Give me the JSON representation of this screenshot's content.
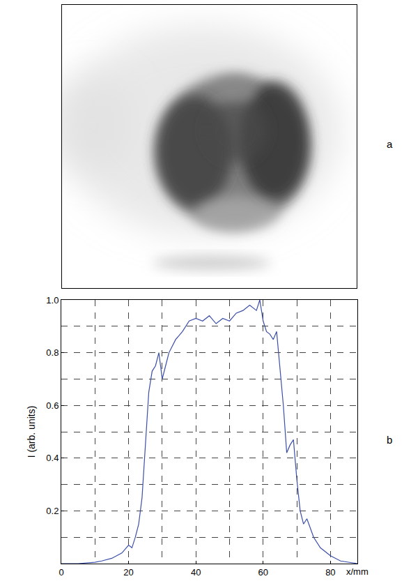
{
  "image_panel": {
    "panel_label": "a"
  },
  "chart_data": {
    "type": "line",
    "panel_label": "b",
    "x_label": "x/mm",
    "y_label": "I (arb. units)",
    "x": [
      0,
      5,
      10,
      12,
      15,
      18,
      20,
      21,
      22,
      23,
      24,
      25,
      26,
      27,
      28,
      29,
      30,
      31,
      32,
      34,
      36,
      38,
      40,
      42,
      44,
      46,
      48,
      50,
      52,
      54,
      56,
      58,
      59,
      60,
      61,
      62,
      63,
      64,
      65,
      66,
      67,
      68,
      69,
      70,
      71,
      72,
      73,
      75,
      77,
      80,
      83,
      86,
      88
    ],
    "values": [
      0,
      0,
      0.005,
      0.01,
      0.02,
      0.04,
      0.07,
      0.06,
      0.1,
      0.15,
      0.25,
      0.45,
      0.65,
      0.73,
      0.75,
      0.8,
      0.7,
      0.75,
      0.8,
      0.85,
      0.88,
      0.92,
      0.93,
      0.92,
      0.94,
      0.91,
      0.93,
      0.92,
      0.95,
      0.96,
      0.98,
      0.96,
      1.0,
      0.92,
      0.88,
      0.87,
      0.85,
      0.88,
      0.75,
      0.6,
      0.42,
      0.45,
      0.47,
      0.32,
      0.2,
      0.15,
      0.17,
      0.1,
      0.06,
      0.03,
      0.01,
      0.005,
      0
    ],
    "color": "#3b4ea8",
    "xlim": [
      0,
      88
    ],
    "xticks": [
      0,
      20,
      40,
      60,
      80
    ],
    "ylim": [
      0,
      1
    ],
    "yticks": [
      0.2,
      0.4,
      0.6,
      0.8,
      {
        "value": 1,
        "label": "1.0"
      }
    ],
    "grid": true
  }
}
